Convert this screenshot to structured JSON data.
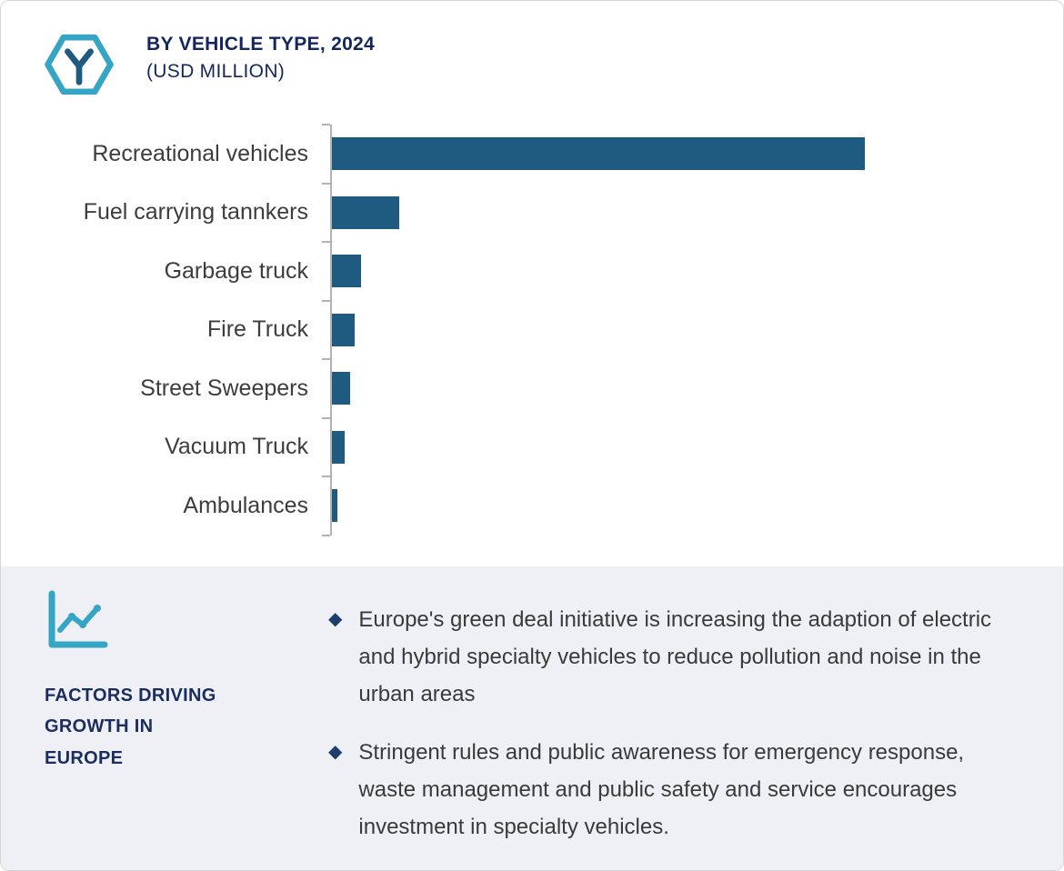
{
  "header": {
    "title": "BY VEHICLE TYPE, 2024",
    "subtitle": "(USD MILLION)"
  },
  "chart_data": {
    "type": "bar",
    "orientation": "horizontal",
    "title": "BY VEHICLE TYPE, 2024 (USD MILLION)",
    "categories": [
      "Recreational  vehicles",
      "Fuel carrying tannkers",
      "Garbage truck",
      "Fire Truck",
      "Street Sweepers",
      "Vacuum Truck",
      "Ambulances"
    ],
    "values": [
      100,
      12.6,
      5.5,
      4.3,
      3.4,
      2.4,
      1.1
    ],
    "value_note": "no numeric axis labels shown; values are bar lengths as percent of longest bar",
    "xlabel": "",
    "ylabel": "",
    "bar_color": "#1f5a80",
    "axis": {
      "ticks_visible": true,
      "value_labels_visible": false,
      "grid": false
    },
    "legend": "none"
  },
  "factors": {
    "heading": "FACTORS DRIVING\nGROWTH IN\nEUROPE",
    "bullet_marker": "◆",
    "bullets": [
      "Europe's green deal initiative is increasing the adaption of electric and hybrid specialty vehicles  to reduce pollution and noise in the  urban areas",
      "Stringent rules and public awareness for emergency response, waste management and public safety and service encourages investment in specialty vehicles."
    ]
  },
  "colors": {
    "bar": "#1f5a80",
    "navy_title": "#14265e",
    "teal_icon": "#34a5c4",
    "panel_bg": "#eef0f6",
    "body_text": "#3a3a3a",
    "axis": "#b3b3b3"
  }
}
